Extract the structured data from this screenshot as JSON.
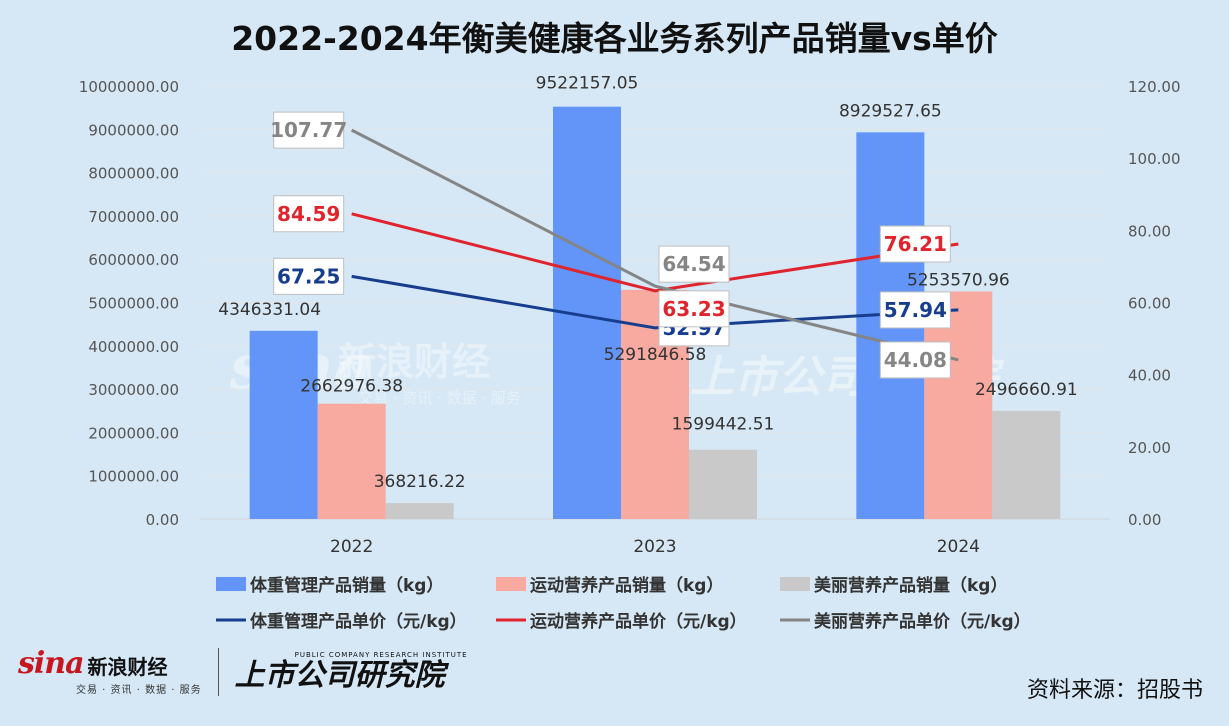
{
  "chart_data": {
    "type": "bar",
    "title": "2022-2024年衡美健康各业务系列产品销量vs单价",
    "categories": [
      "2022",
      "2023",
      "2024"
    ],
    "left_axis": {
      "min": 0,
      "max": 10000000,
      "step": 1000000,
      "tick_labels": [
        "0.00",
        "1000000.00",
        "2000000.00",
        "3000000.00",
        "4000000.00",
        "5000000.00",
        "6000000.00",
        "7000000.00",
        "8000000.00",
        "9000000.00",
        "10000000.00"
      ]
    },
    "right_axis": {
      "min": 0,
      "max": 120,
      "step": 20,
      "tick_labels": [
        "0.00",
        "20.00",
        "40.00",
        "60.00",
        "80.00",
        "100.00",
        "120.00"
      ]
    },
    "bar_series": [
      {
        "name": "体重管理产品销量（kg）",
        "color": "#6395f8",
        "values": [
          4346331.04,
          9522157.05,
          8929527.65
        ],
        "labels": [
          "4346331.04",
          "9522157.05",
          "8929527.65"
        ]
      },
      {
        "name": "运动营养产品销量（kg）",
        "color": "#f8a9a0",
        "values": [
          2662976.38,
          5291846.58,
          5253570.96
        ],
        "labels": [
          "2662976.38",
          "5291846.58",
          "5253570.96"
        ]
      },
      {
        "name": "美丽营养产品销量（kg）",
        "color": "#c9c9c9",
        "values": [
          368216.22,
          1599442.51,
          2496660.91
        ],
        "labels": [
          "368216.22",
          "1599442.51",
          "2496660.91"
        ]
      }
    ],
    "line_series": [
      {
        "name": "体重管理产品单价（元/kg）",
        "color": "#173d8f",
        "values": [
          67.25,
          52.97,
          57.94
        ],
        "labels": [
          "67.25",
          "52.97",
          "57.94"
        ]
      },
      {
        "name": "运动营养产品单价（元/kg）",
        "color": "#e0242d",
        "values": [
          84.59,
          63.23,
          76.21
        ],
        "labels": [
          "84.59",
          "63.23",
          "76.21"
        ]
      },
      {
        "name": "美丽营养产品单价（元/kg）",
        "color": "#858585",
        "values": [
          107.77,
          64.54,
          44.08
        ],
        "labels": [
          "107.77",
          "64.54",
          "44.08"
        ]
      }
    ],
    "grid": true,
    "legend_position": "bottom"
  },
  "watermark": {
    "brand": "sina",
    "brand_cn": "新浪财经",
    "tagline": "交易 · 资讯 · 数据 · 服务",
    "institute": "上市公司研究院"
  },
  "footer": {
    "sina_word": "sina",
    "sina_cn": "新浪财经",
    "sina_tagline": "交易 · 资讯 · 数据 · 服务",
    "institute_en": "PUBLIC COMPANY RESEARCH INSTITUTE",
    "institute_cn": "上市公司研究院",
    "source": "资料来源：招股书"
  }
}
